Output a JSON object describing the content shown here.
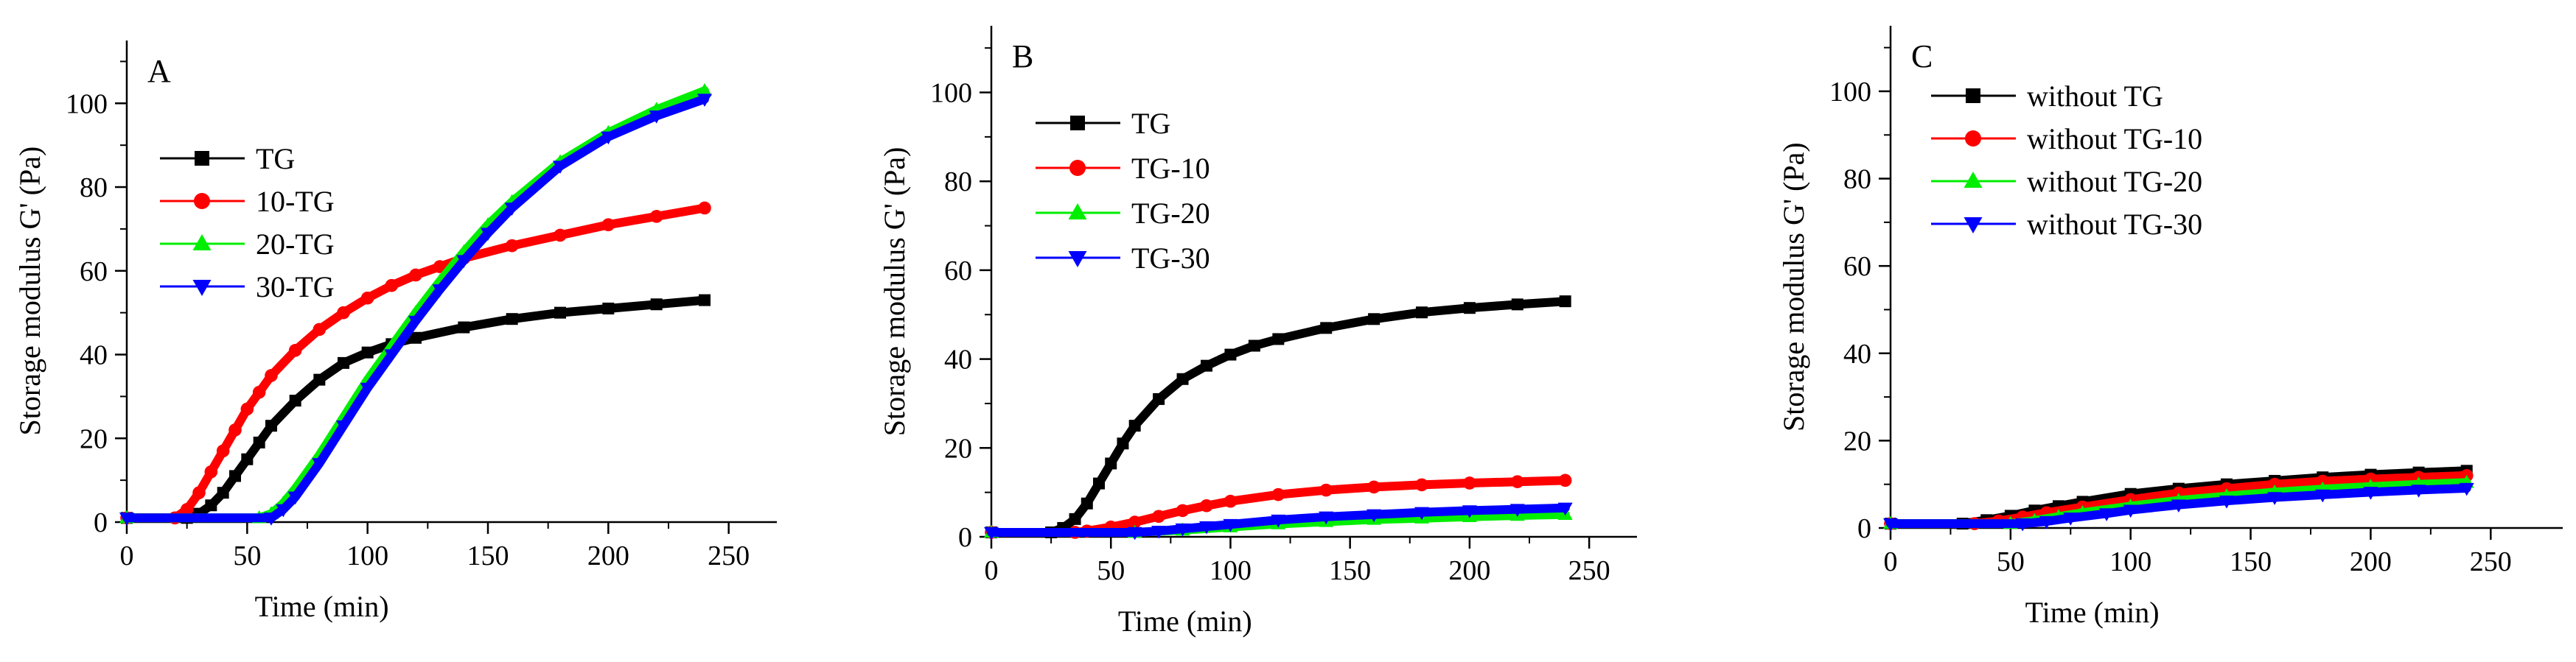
{
  "chart_data": [
    {
      "type": "line",
      "panel_label": "A",
      "xlabel": "Time (min)",
      "ylabel": "Storage modulus G' (Pa)",
      "xlim": [
        0,
        270
      ],
      "ylim": [
        0,
        115
      ],
      "xticks": [
        0,
        50,
        100,
        150,
        200,
        250
      ],
      "yticks": [
        0,
        20,
        40,
        60,
        80,
        100
      ],
      "legend_position": "top-left",
      "series": [
        {
          "name": "TG",
          "color": "#000000",
          "marker": "square",
          "x": [
            0,
            25,
            30,
            35,
            40,
            45,
            50,
            55,
            60,
            70,
            80,
            90,
            100,
            110,
            120,
            140,
            160,
            180,
            200,
            220,
            240
          ],
          "y": [
            1,
            1,
            2,
            4,
            7,
            11,
            15,
            19,
            23,
            29,
            34,
            38,
            40.5,
            42.5,
            44,
            46.5,
            48.5,
            50,
            51,
            52,
            53
          ]
        },
        {
          "name": "10-TG",
          "color": "#ff0000",
          "marker": "circle",
          "x": [
            0,
            20,
            25,
            30,
            35,
            40,
            45,
            50,
            55,
            60,
            70,
            80,
            90,
            100,
            110,
            120,
            130,
            140,
            160,
            180,
            200,
            220,
            240
          ],
          "y": [
            1,
            1,
            3,
            7,
            12,
            17,
            22,
            27,
            31,
            35,
            41,
            46,
            50,
            53.5,
            56.5,
            59,
            61,
            63,
            66,
            68.5,
            71,
            73,
            75
          ]
        },
        {
          "name": "20-TG",
          "color": "#00ee00",
          "marker": "triangle-up",
          "x": [
            0,
            55,
            60,
            65,
            70,
            80,
            90,
            100,
            110,
            120,
            130,
            140,
            150,
            160,
            180,
            200,
            220,
            240
          ],
          "y": [
            1,
            1,
            2,
            4.5,
            8,
            16,
            25,
            34,
            42,
            50,
            57.5,
            64.5,
            71,
            76.5,
            86,
            93,
            98.5,
            103
          ]
        },
        {
          "name": "30-TG",
          "color": "#0000ff",
          "marker": "triangle-down",
          "x": [
            0,
            60,
            65,
            70,
            80,
            90,
            100,
            110,
            120,
            130,
            140,
            150,
            160,
            180,
            200,
            220,
            240
          ],
          "y": [
            1,
            1,
            3,
            6,
            14,
            23,
            32,
            40,
            48,
            55.5,
            62.5,
            69,
            75,
            85,
            92,
            97,
            101
          ]
        }
      ]
    },
    {
      "type": "line",
      "panel_label": "B",
      "xlabel": "Time (min)",
      "ylabel": "Storage modulus G' (Pa)",
      "xlim": [
        0,
        270
      ],
      "ylim": [
        0,
        115
      ],
      "xticks": [
        0,
        50,
        100,
        150,
        200,
        250
      ],
      "yticks": [
        0,
        20,
        40,
        60,
        80,
        100
      ],
      "legend_position": "top-left",
      "series": [
        {
          "name": "TG",
          "color": "#000000",
          "marker": "square",
          "x": [
            0,
            25,
            30,
            35,
            40,
            45,
            50,
            55,
            60,
            70,
            80,
            90,
            100,
            110,
            120,
            140,
            160,
            180,
            200,
            220,
            240
          ],
          "y": [
            1,
            1,
            2,
            4,
            7.5,
            12,
            16.5,
            21,
            25,
            31,
            35.5,
            38.5,
            41,
            43,
            44.5,
            47,
            49,
            50.5,
            51.5,
            52.3,
            53
          ]
        },
        {
          "name": "TG-10",
          "color": "#ff0000",
          "marker": "circle",
          "x": [
            0,
            35,
            40,
            50,
            60,
            70,
            80,
            90,
            100,
            120,
            140,
            160,
            180,
            200,
            220,
            240
          ],
          "y": [
            1,
            1,
            1.3,
            2.2,
            3.3,
            4.6,
            5.9,
            7,
            8,
            9.5,
            10.5,
            11.2,
            11.7,
            12.1,
            12.4,
            12.7
          ]
        },
        {
          "name": "TG-20",
          "color": "#00ee00",
          "marker": "triangle-up",
          "x": [
            0,
            60,
            80,
            100,
            120,
            140,
            160,
            180,
            200,
            220,
            240
          ],
          "y": [
            1,
            1,
            1.5,
            2.2,
            2.9,
            3.4,
            3.9,
            4.2,
            4.5,
            4.8,
            5
          ]
        },
        {
          "name": "TG-30",
          "color": "#0000ff",
          "marker": "triangle-down",
          "x": [
            0,
            60,
            70,
            80,
            90,
            100,
            120,
            140,
            160,
            180,
            200,
            220,
            240
          ],
          "y": [
            1,
            1,
            1.3,
            1.8,
            2.3,
            2.8,
            3.8,
            4.5,
            5,
            5.5,
            5.9,
            6.2,
            6.5
          ]
        }
      ]
    },
    {
      "type": "line",
      "panel_label": "C",
      "xlabel": "Time (min)",
      "ylabel": "Storage modulus G' (Pa)",
      "xlim": [
        0,
        280
      ],
      "ylim": [
        0,
        115
      ],
      "xticks": [
        0,
        50,
        100,
        150,
        200,
        250
      ],
      "yticks": [
        0,
        20,
        40,
        60,
        80,
        100
      ],
      "legend_position": "top-left",
      "series": [
        {
          "name": "without TG",
          "color": "#000000",
          "marker": "square",
          "x": [
            0,
            30,
            40,
            50,
            60,
            70,
            80,
            100,
            120,
            140,
            160,
            180,
            200,
            220,
            240
          ],
          "y": [
            1,
            1,
            1.8,
            2.8,
            4,
            5,
            6,
            7.8,
            9,
            10,
            10.8,
            11.6,
            12.2,
            12.7,
            13.1
          ]
        },
        {
          "name": "without TG-10",
          "color": "#ff0000",
          "marker": "circle",
          "x": [
            0,
            35,
            45,
            55,
            65,
            80,
            100,
            120,
            140,
            160,
            180,
            200,
            220,
            240
          ],
          "y": [
            1,
            1,
            1.6,
            2.5,
            3.5,
            4.8,
            6.5,
            8,
            9,
            10,
            10.7,
            11.2,
            11.6,
            12
          ]
        },
        {
          "name": "without TG-20",
          "color": "#00ee00",
          "marker": "triangle-up",
          "x": [
            0,
            50,
            60,
            70,
            80,
            100,
            120,
            140,
            160,
            180,
            200,
            220,
            240
          ],
          "y": [
            1,
            1,
            1.7,
            2.6,
            3.5,
            5,
            6.3,
            7.3,
            8.2,
            8.9,
            9.5,
            10,
            10.4
          ]
        },
        {
          "name": "without TG-30",
          "color": "#0000ff",
          "marker": "triangle-down",
          "x": [
            0,
            55,
            65,
            75,
            90,
            100,
            120,
            140,
            160,
            180,
            200,
            220,
            240
          ],
          "y": [
            1,
            1,
            1.5,
            2.3,
            3.3,
            4.1,
            5.3,
            6.2,
            7,
            7.6,
            8.2,
            8.7,
            9.1
          ]
        }
      ]
    }
  ]
}
